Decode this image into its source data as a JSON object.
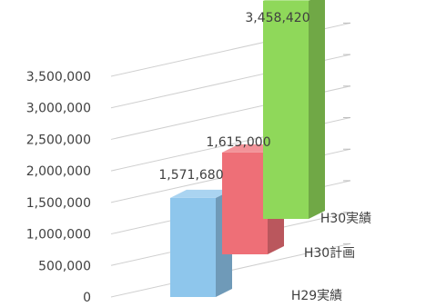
{
  "chart_data": {
    "type": "bar",
    "style": "3d-depth-axis",
    "categories": [
      "H29実績",
      "H30計画",
      "H30実績"
    ],
    "values": [
      1571680,
      1615000,
      3458420
    ],
    "data_labels": [
      "1,571,680",
      "1,615,000",
      "3,458,420"
    ],
    "y_ticks": [
      "0",
      "500,000",
      "1,000,000",
      "1,500,000",
      "2,000,000",
      "2,500,000",
      "3,000,000",
      "3,500,000"
    ],
    "ylim": [
      0,
      3500000
    ],
    "grid": true,
    "colors": [
      "#8ec6ec",
      "#ee6f77",
      "#8fd85a"
    ]
  }
}
